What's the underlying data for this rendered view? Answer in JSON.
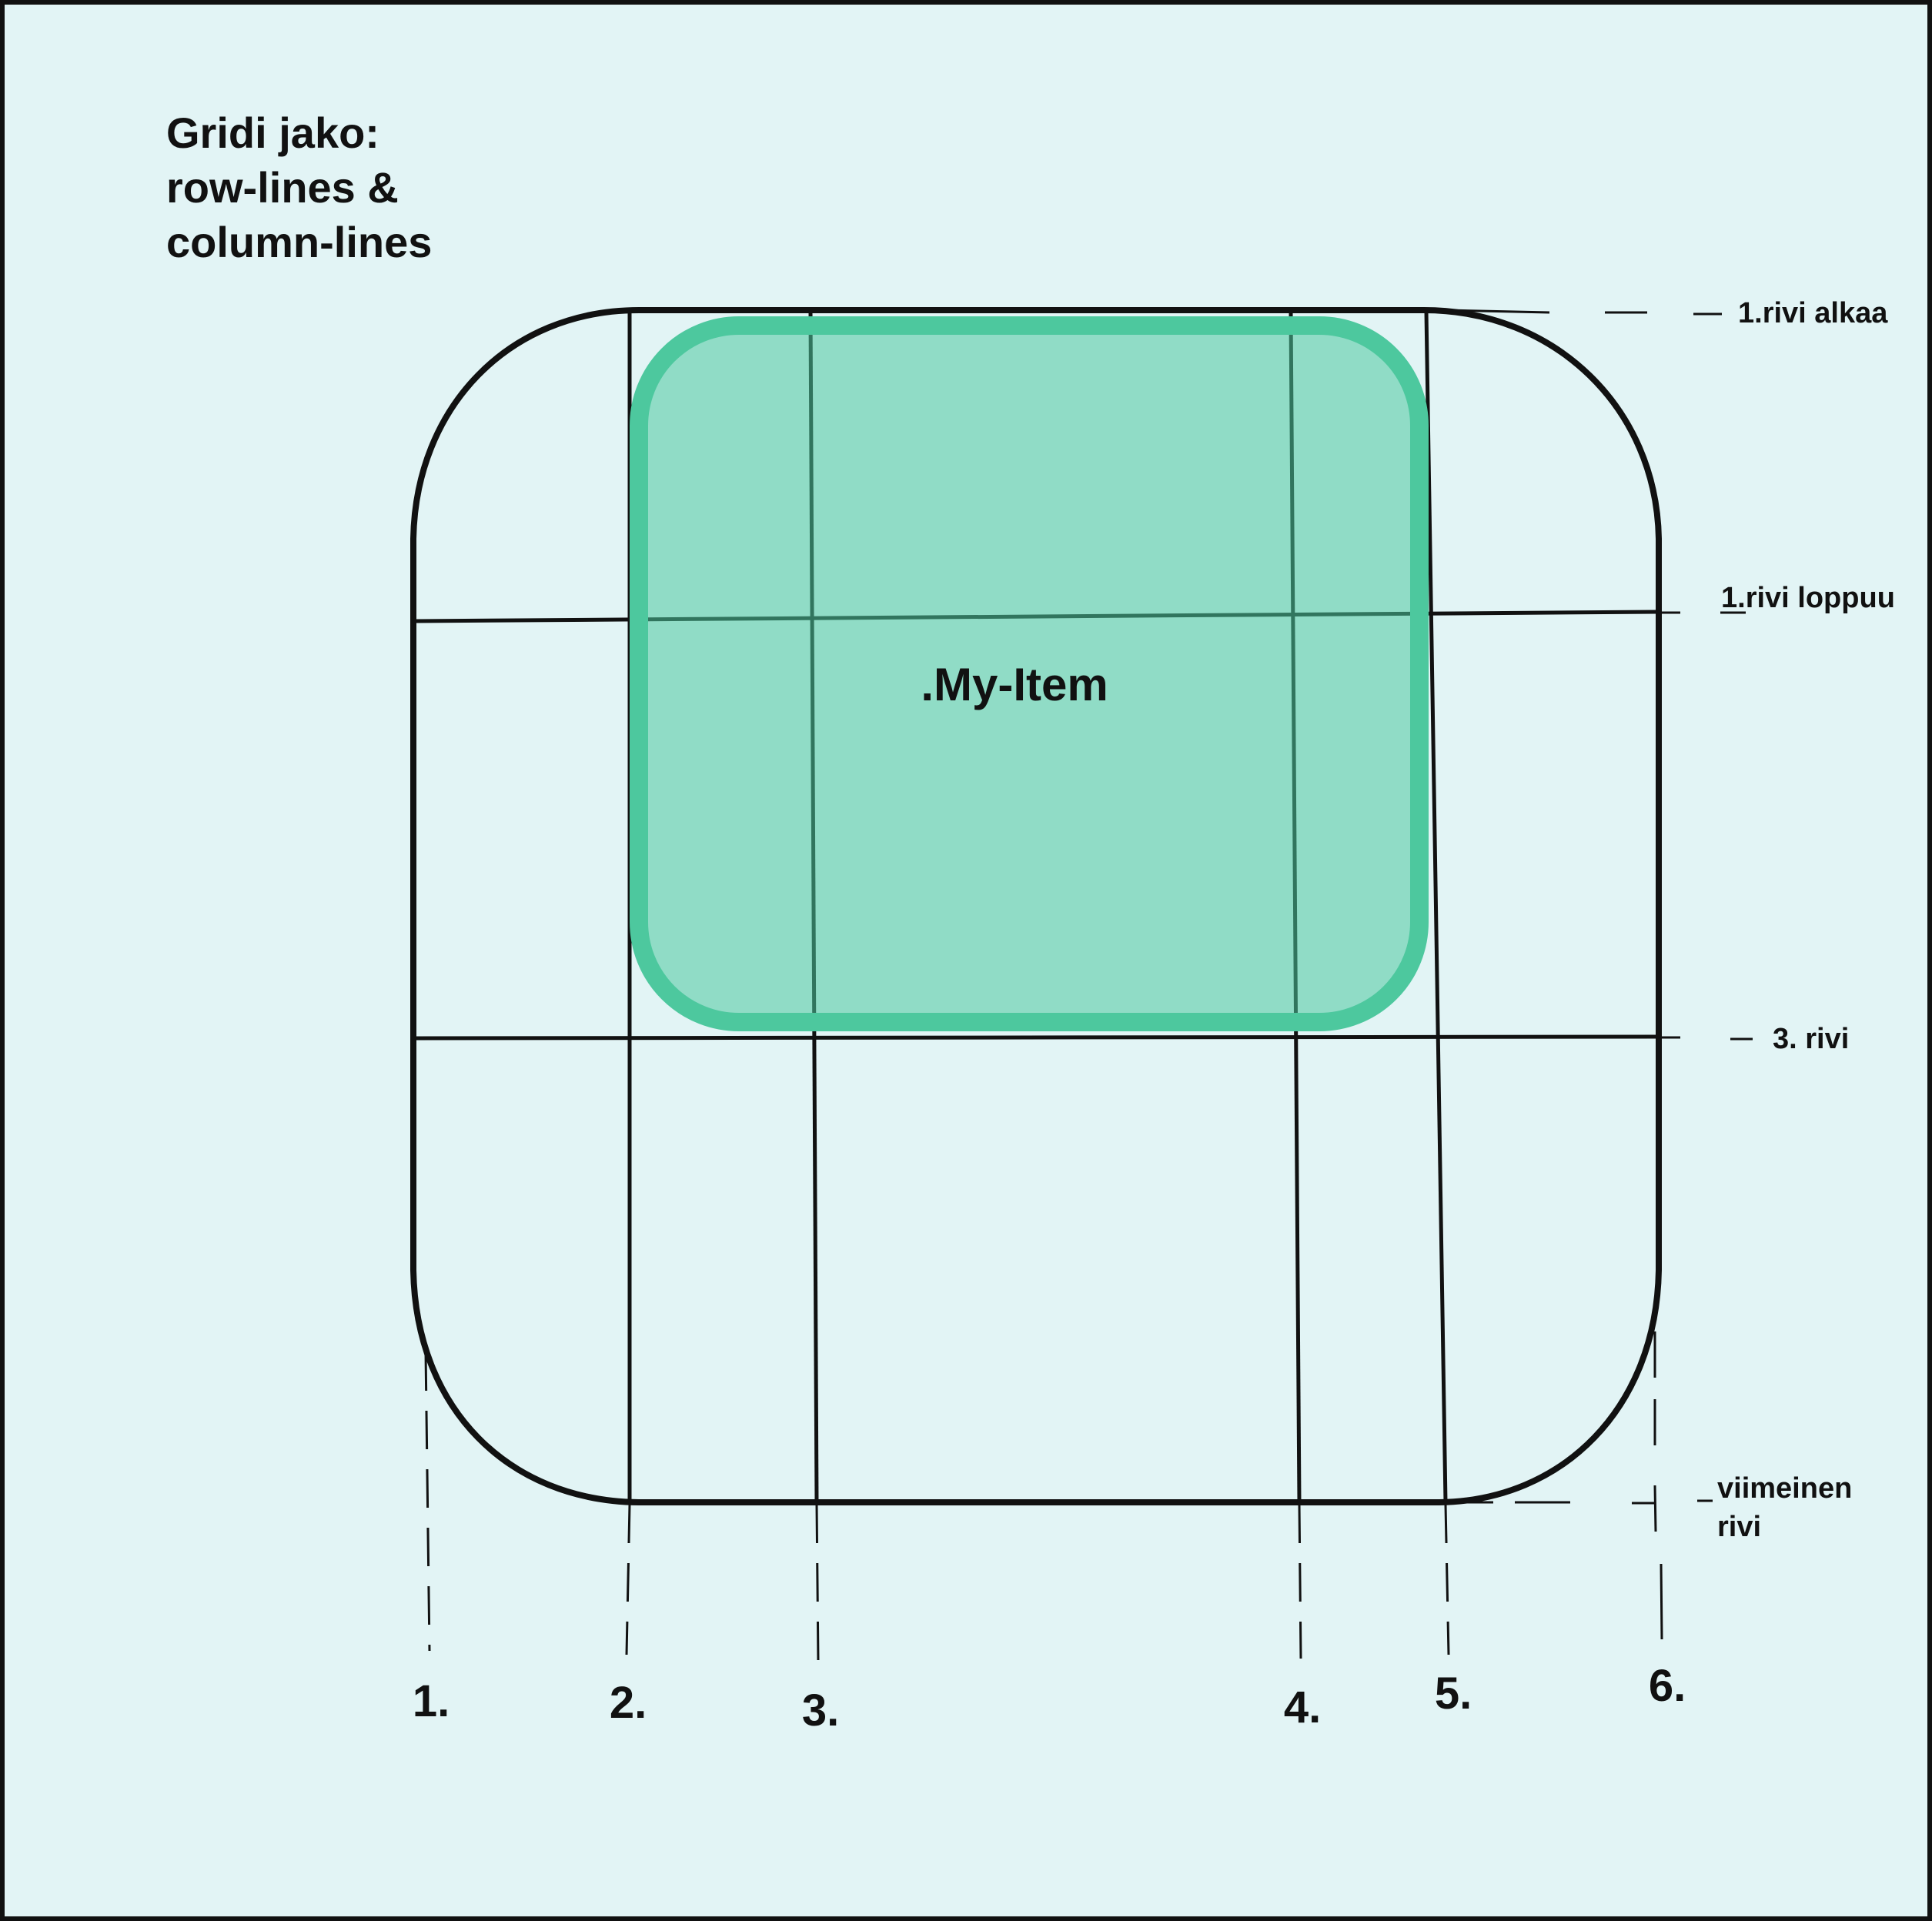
{
  "title": {
    "line1": "Gridi jako:",
    "line2": "row-lines &",
    "line3": "column-lines"
  },
  "item": {
    "label": ".My-Item",
    "fill_color": "#9bdbc8",
    "border_color": "#4dc89e"
  },
  "row_lines": [
    {
      "label": "1.rivi alkaa"
    },
    {
      "label": "1.rivi loppuu"
    },
    {
      "label": "3. rivi"
    },
    {
      "label": "viimeinen",
      "label2": "rivi"
    }
  ],
  "column_lines": [
    {
      "label": "1."
    },
    {
      "label": "2."
    },
    {
      "label": "3."
    },
    {
      "label": "4."
    },
    {
      "label": "5."
    },
    {
      "label": "6."
    }
  ],
  "colors": {
    "background": "#e2f4f5",
    "line": "#111111"
  }
}
